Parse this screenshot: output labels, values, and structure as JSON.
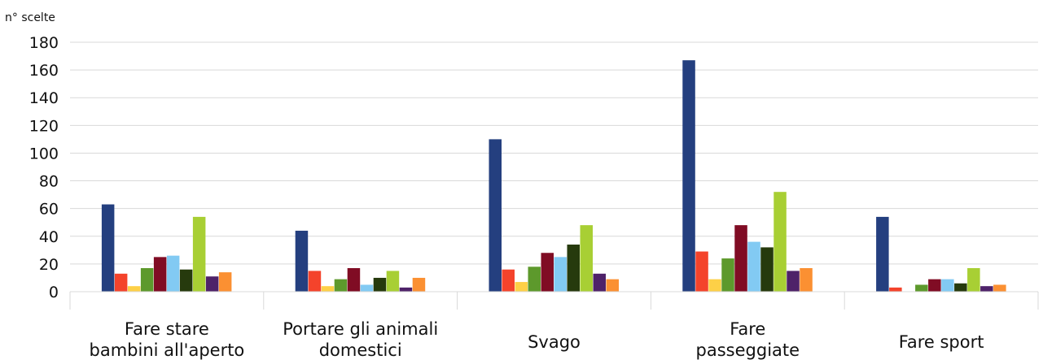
{
  "chart_data": {
    "type": "bar",
    "ylabel": "n° scelte",
    "xlabel": "",
    "ylim": [
      0,
      180
    ],
    "yticks": [
      "0",
      "20",
      "40",
      "60",
      "80",
      "100",
      "120",
      "140",
      "160",
      "180"
    ],
    "grid": true,
    "legend": "none",
    "categories": [
      [
        "Fare stare",
        "bambini all'aperto"
      ],
      [
        "Portare gli animali",
        "domestici"
      ],
      [
        "Svago"
      ],
      [
        "Fare",
        "passeggiate"
      ],
      [
        "Fare sport"
      ]
    ],
    "series": [
      {
        "color": "#243f7f",
        "values": [
          63,
          44,
          110,
          167,
          54
        ]
      },
      {
        "color": "#f4432b",
        "values": [
          13,
          15,
          16,
          29,
          3
        ]
      },
      {
        "color": "#fdd047",
        "values": [
          4,
          4,
          7,
          9,
          0
        ]
      },
      {
        "color": "#5d992c",
        "values": [
          17,
          9,
          18,
          24,
          5
        ]
      },
      {
        "color": "#800c24",
        "values": [
          25,
          17,
          28,
          48,
          9
        ]
      },
      {
        "color": "#82caf3",
        "values": [
          26,
          5,
          25,
          36,
          9
        ]
      },
      {
        "color": "#263a0d",
        "values": [
          16,
          10,
          34,
          32,
          6
        ]
      },
      {
        "color": "#a8cf34",
        "values": [
          54,
          15,
          48,
          72,
          17
        ]
      },
      {
        "color": "#4e2269",
        "values": [
          11,
          3,
          13,
          15,
          4
        ]
      },
      {
        "color": "#fb9032",
        "values": [
          14,
          10,
          9,
          17,
          5
        ]
      }
    ]
  }
}
